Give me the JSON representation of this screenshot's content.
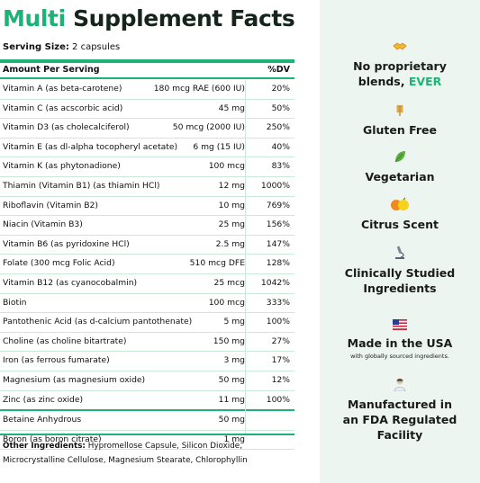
{
  "title": {
    "accent": "Multi",
    "rest": "Supplement Facts"
  },
  "serving": {
    "label": "Serving Size:",
    "value": "2 capsules"
  },
  "table": {
    "header_left": "Amount Per Serving",
    "header_right": "%DV",
    "rows": [
      {
        "name": "Vitamin A (as beta-carotene)",
        "amount": "180 mcg RAE (600 IU)",
        "dv": "20%"
      },
      {
        "name": "Vitamin C (as acscorbic acid)",
        "amount": "45 mg",
        "dv": "50%"
      },
      {
        "name": "Vitamin D3 (as cholecalciferol)",
        "amount": "50 mcg (2000 IU)",
        "dv": "250%"
      },
      {
        "name": "Vitamin E (as dl-alpha tocopheryl acetate)",
        "amount": "6 mg (15 IU)",
        "dv": "40%"
      },
      {
        "name": "Vitamin K (as phytonadione)",
        "amount": "100 mcg",
        "dv": "83%"
      },
      {
        "name": "Thiamin (Vitamin B1) (as thiamin HCl)",
        "amount": "12 mg",
        "dv": "1000%"
      },
      {
        "name": "Riboflavin (Vitamin B2)",
        "amount": "10 mg",
        "dv": "769%"
      },
      {
        "name": "Niacin (Vitamin B3)",
        "amount": "25 mg",
        "dv": "156%"
      },
      {
        "name": "Vitamin B6 (as pyridoxine HCl)",
        "amount": "2.5 mg",
        "dv": "147%"
      },
      {
        "name": "Folate (300 mcg Folic Acid)",
        "amount": "510 mcg DFE",
        "dv": "128%"
      },
      {
        "name": "Vitamin B12 (as cyanocobalmin)",
        "amount": "25 mcg",
        "dv": "1042%"
      },
      {
        "name": "Biotin",
        "amount": "100 mcg",
        "dv": "333%"
      },
      {
        "name": "Pantothenic Acid (as d-calcium pantothenate)",
        "amount": "5 mg",
        "dv": "100%"
      },
      {
        "name": "Choline (as choline bitartrate)",
        "amount": "150 mg",
        "dv": "27%"
      },
      {
        "name": "Iron (as ferrous fumarate)",
        "amount": "3 mg",
        "dv": "17%"
      },
      {
        "name": "Magnesium (as magnesium oxide)",
        "amount": "50 mg",
        "dv": "12%"
      },
      {
        "name": "Zinc (as zinc oxide)",
        "amount": "11 mg",
        "dv": "100%"
      },
      {
        "name": "Betaine Anhydrous",
        "amount": "50 mg",
        "dv": ""
      },
      {
        "name": "Boron (as boron citrate)",
        "amount": "1 mg",
        "dv": ""
      }
    ]
  },
  "other_ingredients": {
    "label": "Other Ingredients:",
    "text": "Hypromellose Capsule, Silicon Dioxide, Microcrystalline Cellulose, Magnesium Stearate, Chlorophyllin"
  },
  "claims": {
    "c1": {
      "icon": "handshake-icon",
      "line1": "No proprietary",
      "line2": "blends,",
      "highlight": "EVER"
    },
    "c2": {
      "icon": "wheat-icon",
      "text": "Gluten Free"
    },
    "c3": {
      "icon": "leaf-icon",
      "text": "Vegetarian"
    },
    "c4": {
      "icon": "citrus-icon",
      "text": "Citrus Scent"
    },
    "c5": {
      "icon": "microscope-icon",
      "line1": "Clinically Studied",
      "line2": "Ingredients"
    },
    "c6": {
      "icon": "us-flag-icon",
      "text": "Made in the USA",
      "sub": "with globally sourced ingredients."
    },
    "c7": {
      "icon": "scientist-icon",
      "line1": "Manufactured in",
      "line2": "an FDA Regulated",
      "line3": "Facility"
    }
  },
  "colors": {
    "accent": "#1db376",
    "panel": "#edf5f1",
    "row_border": "#c9e9d9"
  }
}
